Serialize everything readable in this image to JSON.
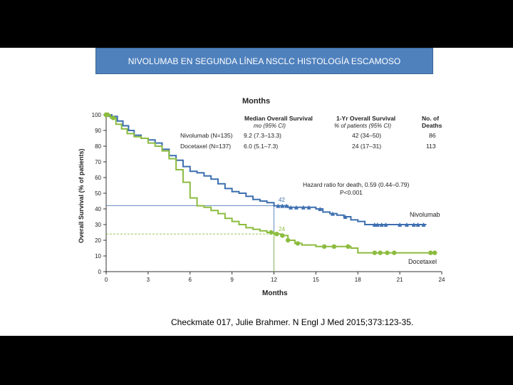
{
  "slide": {
    "title": "NIVOLUMAB EN SEGUNDA LÍNEA NSCLC HISTOLOGÍA  ESCAMOSO",
    "citation": "Checkmate 017, Julie Brahmer. N Engl J Med 2015;373:123-35."
  },
  "colors": {
    "nivolumab": "#3d6fb0",
    "docetaxel": "#8cbc3f",
    "title_bg": "#4f81bd"
  },
  "chart_data": {
    "type": "line",
    "title": "Months",
    "xlabel": "Months",
    "ylabel": "Overall Survival (% of patients)",
    "xlim": [
      0,
      24
    ],
    "ylim": [
      0,
      100
    ],
    "xticks": [
      0,
      3,
      6,
      9,
      12,
      15,
      18,
      21,
      24
    ],
    "yticks": [
      0,
      10,
      20,
      30,
      40,
      50,
      60,
      70,
      80,
      90,
      100
    ],
    "table": {
      "headers": [
        {
          "main": "Median Overall Survival",
          "sub": "mo (95% CI)"
        },
        {
          "main": "1-Yr Overall Survival",
          "sub": "% of patients (95% CI)"
        },
        {
          "main": "No. of",
          "sub": "Deaths"
        }
      ],
      "rows": [
        {
          "label": "Nivolumab (N=135)",
          "median": "9.2 (7.3–13.3)",
          "one_year": "42 (34–50)",
          "deaths": "86"
        },
        {
          "label": "Docetaxel (N=137)",
          "median": "6.0 (5.1–7.3)",
          "one_year": "24 (17–31)",
          "deaths": "113"
        }
      ]
    },
    "hazard_ratio": "Hazard ratio for death, 0.59 (0.44–0.79)",
    "p_value": "P<0.001",
    "reference_x": 12,
    "series": [
      {
        "name": "Nivolumab",
        "label_at_12": "42",
        "points": [
          [
            0,
            100
          ],
          [
            0.4,
            99
          ],
          [
            0.8,
            96
          ],
          [
            1.2,
            93
          ],
          [
            1.6,
            90
          ],
          [
            2,
            87
          ],
          [
            2.5,
            85
          ],
          [
            3,
            84
          ],
          [
            3.5,
            82
          ],
          [
            4,
            78
          ],
          [
            4.5,
            74
          ],
          [
            5,
            71
          ],
          [
            5.5,
            67
          ],
          [
            6,
            64
          ],
          [
            6.5,
            63
          ],
          [
            7,
            61
          ],
          [
            7.5,
            59
          ],
          [
            8,
            56
          ],
          [
            8.5,
            53
          ],
          [
            9,
            51
          ],
          [
            9.5,
            50
          ],
          [
            10,
            48
          ],
          [
            10.5,
            46
          ],
          [
            11,
            45
          ],
          [
            11.5,
            44
          ],
          [
            12,
            42
          ],
          [
            13,
            41
          ],
          [
            14,
            41
          ],
          [
            15,
            40
          ],
          [
            15.5,
            38
          ],
          [
            16,
            37
          ],
          [
            16.5,
            36
          ],
          [
            17,
            35
          ],
          [
            17.5,
            33
          ],
          [
            18,
            32
          ],
          [
            18.5,
            30
          ],
          [
            19,
            30
          ],
          [
            20,
            30
          ],
          [
            21,
            30
          ],
          [
            22,
            30
          ],
          [
            22.9,
            30
          ]
        ],
        "censor_x": [
          0.2,
          12.3,
          12.6,
          12.9,
          13.2,
          13.6,
          14.1,
          14.5,
          15.3,
          16.2,
          17.1,
          19.2,
          19.4,
          19.7,
          20,
          21,
          21.5,
          22,
          22.3,
          22.7
        ],
        "end_label": "Nivolumab"
      },
      {
        "name": "Docetaxel",
        "label_at_12": "24",
        "points": [
          [
            0,
            100
          ],
          [
            0.3,
            98
          ],
          [
            0.7,
            94
          ],
          [
            1.1,
            91
          ],
          [
            1.5,
            88
          ],
          [
            2,
            86
          ],
          [
            2.5,
            85
          ],
          [
            3,
            82
          ],
          [
            3.5,
            80
          ],
          [
            4,
            77
          ],
          [
            4.5,
            72
          ],
          [
            5,
            65
          ],
          [
            5.5,
            57
          ],
          [
            6,
            47
          ],
          [
            6.5,
            42
          ],
          [
            7,
            41
          ],
          [
            7.5,
            39
          ],
          [
            8,
            37
          ],
          [
            8.5,
            34
          ],
          [
            9,
            32
          ],
          [
            9.5,
            30
          ],
          [
            10,
            28
          ],
          [
            10.5,
            27
          ],
          [
            11,
            26
          ],
          [
            11.5,
            25
          ],
          [
            12,
            24
          ],
          [
            12.5,
            23
          ],
          [
            13,
            20
          ],
          [
            13.5,
            18
          ],
          [
            14,
            17
          ],
          [
            15,
            16
          ],
          [
            16,
            16
          ],
          [
            17,
            16
          ],
          [
            17.5,
            15
          ],
          [
            18,
            12
          ],
          [
            19,
            12
          ],
          [
            20,
            12
          ],
          [
            21,
            12
          ],
          [
            22,
            12
          ],
          [
            23,
            12
          ],
          [
            23.5,
            12
          ]
        ],
        "censor_x": [
          0.1,
          0.5,
          11.8,
          12.2,
          12.6,
          13,
          13.7,
          15.6,
          16.3,
          17.3,
          19.2,
          19.6,
          20.1,
          20.6,
          23.2,
          23.5
        ],
        "end_label": "Docetaxel"
      }
    ]
  }
}
